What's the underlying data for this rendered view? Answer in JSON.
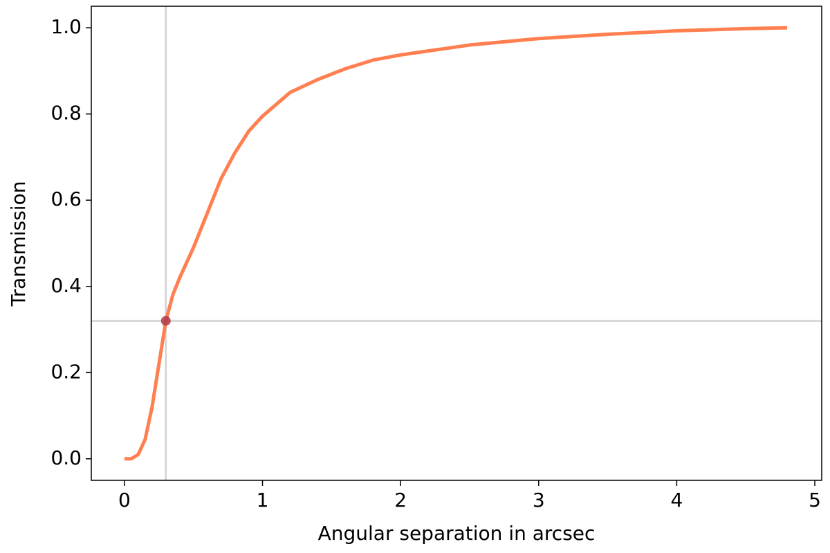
{
  "chart_data": {
    "type": "line",
    "xlabel": "Angular separation in arcsec",
    "ylabel": "Transmission",
    "x": [
      0,
      0.05,
      0.1,
      0.15,
      0.2,
      0.25,
      0.3,
      0.35,
      0.4,
      0.5,
      0.6,
      0.7,
      0.8,
      0.9,
      1.0,
      1.2,
      1.4,
      1.6,
      1.8,
      2.0,
      2.5,
      3.0,
      3.5,
      4.0,
      4.5,
      4.8
    ],
    "series": [
      {
        "color": "#ff7f50",
        "values": [
          0,
          0,
          0.01,
          0.045,
          0.12,
          0.22,
          0.32,
          0.38,
          0.42,
          0.49,
          0.57,
          0.65,
          0.71,
          0.76,
          0.795,
          0.85,
          0.88,
          0.905,
          0.925,
          0.937,
          0.96,
          0.975,
          0.985,
          0.993,
          0.998,
          1.0
        ]
      }
    ],
    "marker": {
      "x": 0.3,
      "y": 0.32,
      "color": "#b03a48",
      "line_color": "#d3d3d3"
    },
    "xlim": [
      -0.24,
      5.05
    ],
    "ylim": [
      -0.05,
      1.05
    ],
    "xticks": [
      0,
      1,
      2,
      3,
      4,
      5
    ],
    "yticks": [
      {
        "value": 0,
        "label": "0.0"
      },
      {
        "value": 0.2,
        "label": "0.2"
      },
      {
        "value": 0.4,
        "label": "0.4"
      },
      {
        "value": 0.6,
        "label": "0.6"
      },
      {
        "value": 0.8,
        "label": "0.8"
      },
      {
        "value": 1.0,
        "label": "1.0"
      }
    ]
  }
}
